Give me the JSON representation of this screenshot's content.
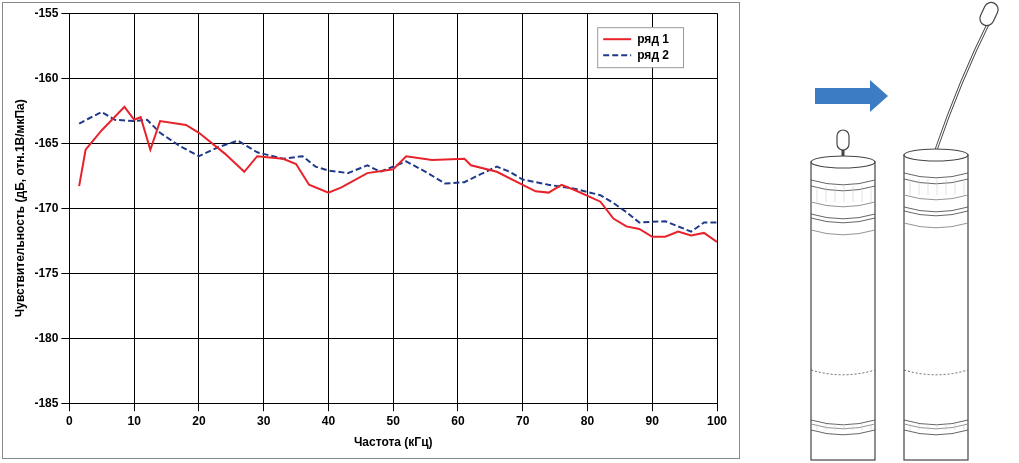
{
  "chart_data": {
    "type": "line",
    "x_label": "Частота (кГц)",
    "y_label": "Чувствительность (дБ, отн.1В/мкПа)",
    "xlim": [
      0,
      100
    ],
    "xticks": [
      0,
      10,
      20,
      30,
      40,
      50,
      60,
      70,
      80,
      90,
      100
    ],
    "ylim": [
      -185,
      -155
    ],
    "yticks": [
      -185,
      -180,
      -175,
      -170,
      -165,
      -160,
      -155
    ],
    "grid": true,
    "legend": "upper right",
    "series": [
      {
        "name": "ряд 1",
        "color": "#e8222a",
        "line_style": "solid",
        "x": [
          1.5,
          2.5,
          5,
          8.5,
          10,
          11,
          12.5,
          14,
          18,
          20,
          24,
          27,
          29,
          33,
          35,
          37,
          40,
          42,
          46,
          50,
          52,
          56,
          61,
          62,
          66,
          70,
          72,
          74,
          76,
          78,
          82,
          84,
          86,
          88,
          90,
          92,
          94,
          96,
          98,
          100
        ],
        "values": [
          -168.3,
          -165.5,
          -164,
          -162.2,
          -163.2,
          -163,
          -165.5,
          -163.3,
          -163.6,
          -164.2,
          -165.8,
          -167.2,
          -166,
          -166.2,
          -166.6,
          -168.2,
          -168.8,
          -168.4,
          -167.3,
          -167,
          -166,
          -166.3,
          -166.2,
          -166.7,
          -167.2,
          -168.2,
          -168.7,
          -168.8,
          -168.2,
          -168.6,
          -169.5,
          -170.8,
          -171.4,
          -171.6,
          -172.2,
          -172.2,
          -171.8,
          -172.1,
          -171.9,
          -172.6
        ]
      },
      {
        "name": "ряд 2",
        "color": "#1f3a8a",
        "line_style": "dashed",
        "x": [
          1.5,
          3,
          5,
          7,
          10,
          12,
          14,
          17,
          20,
          23,
          26,
          29,
          33,
          36,
          38,
          40,
          43,
          46,
          48,
          52,
          55,
          58,
          61,
          63,
          66,
          68,
          70,
          74,
          78,
          82,
          84,
          86,
          88,
          92,
          94,
          96,
          98,
          100
        ],
        "values": [
          -163.5,
          -163.1,
          -162.6,
          -163.2,
          -163.3,
          -163.2,
          -164.2,
          -165.2,
          -166,
          -165.3,
          -164.8,
          -165.7,
          -166.2,
          -166,
          -166.8,
          -167.1,
          -167.3,
          -166.7,
          -167.2,
          -166.4,
          -167.2,
          -168.1,
          -168,
          -167.5,
          -166.8,
          -167.2,
          -167.8,
          -168.2,
          -168.5,
          -169,
          -169.6,
          -170.3,
          -171.1,
          -171,
          -171.4,
          -171.8,
          -171.1,
          -171.1
        ]
      }
    ]
  }
}
